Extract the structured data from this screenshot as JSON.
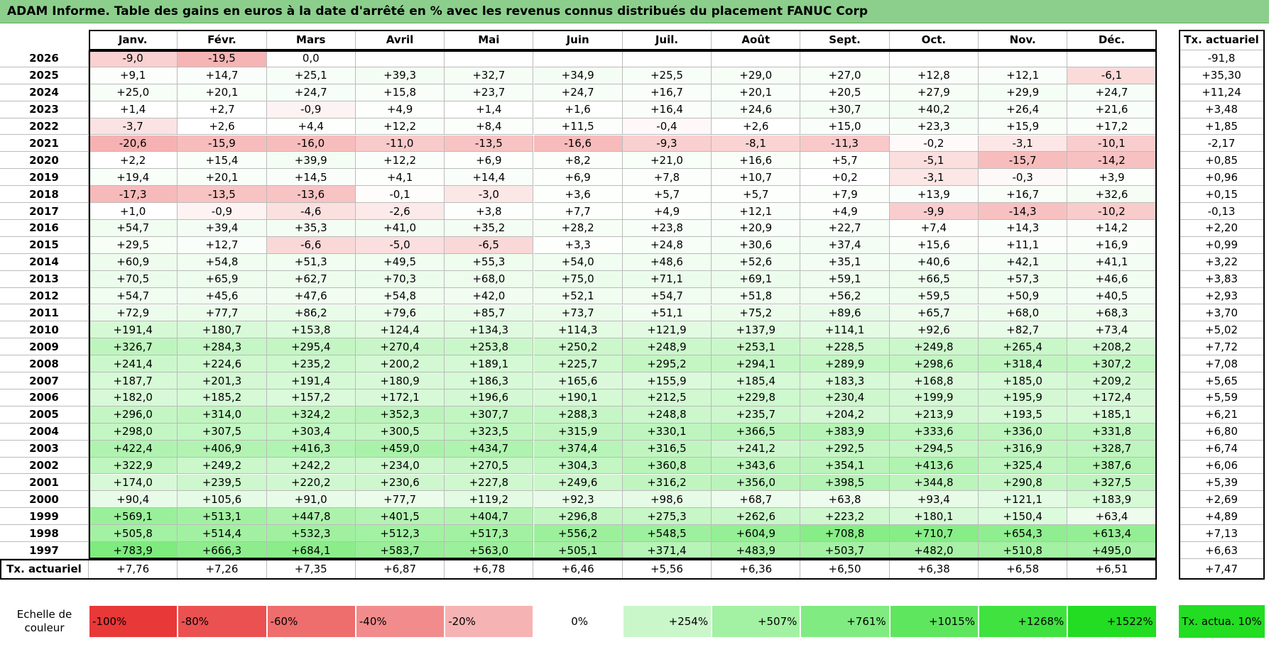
{
  "title": "ADAM Informe. Table des gains en euros à la date d'arrêté en % avec les revenus connus distribués du placement FANUC Corp",
  "table": {
    "columns": [
      "Janv.",
      "Févr.",
      "Mars",
      "Avril",
      "Mai",
      "Juin",
      "Juil.",
      "Août",
      "Sept.",
      "Oct.",
      "Nov.",
      "Déc."
    ],
    "summary_header": "Tx. actuariel",
    "rows": [
      {
        "year": "2026",
        "values": [
          "-9,0",
          "-19,5",
          "0,0"
        ],
        "summary": "-91,8"
      },
      {
        "year": "2025",
        "values": [
          "+9,1",
          "+14,7",
          "+25,1",
          "+39,3",
          "+32,7",
          "+34,9",
          "+25,5",
          "+29,0",
          "+27,0",
          "+12,8",
          "+12,1",
          "-6,1"
        ],
        "summary": "+35,30"
      },
      {
        "year": "2024",
        "values": [
          "+25,0",
          "+20,1",
          "+24,7",
          "+15,8",
          "+23,7",
          "+24,7",
          "+16,7",
          "+20,1",
          "+20,5",
          "+27,9",
          "+29,9",
          "+24,7"
        ],
        "summary": "+11,24"
      },
      {
        "year": "2023",
        "values": [
          "+1,4",
          "+2,7",
          "-0,9",
          "+4,9",
          "+1,4",
          "+1,6",
          "+16,4",
          "+24,6",
          "+30,7",
          "+40,2",
          "+26,4",
          "+21,6"
        ],
        "summary": "+3,48"
      },
      {
        "year": "2022",
        "values": [
          "-3,7",
          "+2,6",
          "+4,4",
          "+12,2",
          "+8,4",
          "+11,5",
          "-0,4",
          "+2,6",
          "+15,0",
          "+23,3",
          "+15,9",
          "+17,2"
        ],
        "summary": "+1,85"
      },
      {
        "year": "2021",
        "values": [
          "-20,6",
          "-15,9",
          "-16,0",
          "-11,0",
          "-13,5",
          "-16,6",
          "-9,3",
          "-8,1",
          "-11,3",
          "-0,2",
          "-3,1",
          "-10,1"
        ],
        "summary": "-2,17"
      },
      {
        "year": "2020",
        "values": [
          "+2,2",
          "+15,4",
          "+39,9",
          "+12,2",
          "+6,9",
          "+8,2",
          "+21,0",
          "+16,6",
          "+5,7",
          "-5,1",
          "-15,7",
          "-14,2"
        ],
        "summary": "+0,85"
      },
      {
        "year": "2019",
        "values": [
          "+19,4",
          "+20,1",
          "+14,5",
          "+4,1",
          "+14,4",
          "+6,9",
          "+7,8",
          "+10,7",
          "+0,2",
          "-3,1",
          "-0,3",
          "+3,9"
        ],
        "summary": "+0,96"
      },
      {
        "year": "2018",
        "values": [
          "-17,3",
          "-13,5",
          "-13,6",
          "-0,1",
          "-3,0",
          "+3,6",
          "+5,7",
          "+5,7",
          "+7,9",
          "+13,9",
          "+16,7",
          "+32,6"
        ],
        "summary": "+0,15"
      },
      {
        "year": "2017",
        "values": [
          "+1,0",
          "-0,9",
          "-4,6",
          "-2,6",
          "+3,8",
          "+7,7",
          "+4,9",
          "+12,1",
          "+4,9",
          "-9,9",
          "-14,3",
          "-10,2"
        ],
        "summary": "-0,13"
      },
      {
        "year": "2016",
        "values": [
          "+54,7",
          "+39,4",
          "+35,3",
          "+41,0",
          "+35,2",
          "+28,2",
          "+23,8",
          "+20,9",
          "+22,7",
          "+7,4",
          "+14,3",
          "+14,2"
        ],
        "summary": "+2,20"
      },
      {
        "year": "2015",
        "values": [
          "+29,5",
          "+12,7",
          "-6,6",
          "-5,0",
          "-6,5",
          "+3,3",
          "+24,8",
          "+30,6",
          "+37,4",
          "+15,6",
          "+11,1",
          "+16,9"
        ],
        "summary": "+0,99"
      },
      {
        "year": "2014",
        "values": [
          "+60,9",
          "+54,8",
          "+51,3",
          "+49,5",
          "+55,3",
          "+54,0",
          "+48,6",
          "+52,6",
          "+35,1",
          "+40,6",
          "+42,1",
          "+41,1"
        ],
        "summary": "+3,22"
      },
      {
        "year": "2013",
        "values": [
          "+70,5",
          "+65,9",
          "+62,7",
          "+70,3",
          "+68,0",
          "+75,0",
          "+71,1",
          "+69,1",
          "+59,1",
          "+66,5",
          "+57,3",
          "+46,6"
        ],
        "summary": "+3,83"
      },
      {
        "year": "2012",
        "values": [
          "+54,7",
          "+45,6",
          "+47,6",
          "+54,8",
          "+42,0",
          "+52,1",
          "+54,7",
          "+51,8",
          "+56,2",
          "+59,5",
          "+50,9",
          "+40,5"
        ],
        "summary": "+2,93"
      },
      {
        "year": "2011",
        "values": [
          "+72,9",
          "+77,7",
          "+86,2",
          "+79,6",
          "+85,7",
          "+73,7",
          "+51,1",
          "+75,2",
          "+89,6",
          "+65,7",
          "+68,0",
          "+68,3"
        ],
        "summary": "+3,70"
      },
      {
        "year": "2010",
        "values": [
          "+191,4",
          "+180,7",
          "+153,8",
          "+124,4",
          "+134,3",
          "+114,3",
          "+121,9",
          "+137,9",
          "+114,1",
          "+92,6",
          "+82,7",
          "+73,4"
        ],
        "summary": "+5,02"
      },
      {
        "year": "2009",
        "values": [
          "+326,7",
          "+284,3",
          "+295,4",
          "+270,4",
          "+253,8",
          "+250,2",
          "+248,9",
          "+253,1",
          "+228,5",
          "+249,8",
          "+265,4",
          "+208,2"
        ],
        "summary": "+7,72"
      },
      {
        "year": "2008",
        "values": [
          "+241,4",
          "+224,6",
          "+235,2",
          "+200,2",
          "+189,1",
          "+225,7",
          "+295,2",
          "+294,1",
          "+289,9",
          "+298,6",
          "+318,4",
          "+307,2"
        ],
        "summary": "+7,08"
      },
      {
        "year": "2007",
        "values": [
          "+187,7",
          "+201,3",
          "+191,4",
          "+180,9",
          "+186,3",
          "+165,6",
          "+155,9",
          "+185,4",
          "+183,3",
          "+168,8",
          "+185,0",
          "+209,2"
        ],
        "summary": "+5,65"
      },
      {
        "year": "2006",
        "values": [
          "+182,0",
          "+185,2",
          "+157,2",
          "+172,1",
          "+196,6",
          "+190,1",
          "+212,5",
          "+229,8",
          "+230,4",
          "+199,9",
          "+195,9",
          "+172,4"
        ],
        "summary": "+5,59"
      },
      {
        "year": "2005",
        "values": [
          "+296,0",
          "+314,0",
          "+324,2",
          "+352,3",
          "+307,7",
          "+288,3",
          "+248,8",
          "+235,7",
          "+204,2",
          "+213,9",
          "+193,5",
          "+185,1"
        ],
        "summary": "+6,21"
      },
      {
        "year": "2004",
        "values": [
          "+298,0",
          "+307,5",
          "+303,4",
          "+300,5",
          "+323,5",
          "+315,9",
          "+330,1",
          "+366,5",
          "+383,9",
          "+333,6",
          "+336,0",
          "+331,8"
        ],
        "summary": "+6,80"
      },
      {
        "year": "2003",
        "values": [
          "+422,4",
          "+406,9",
          "+416,3",
          "+459,0",
          "+434,7",
          "+374,4",
          "+316,5",
          "+241,2",
          "+292,5",
          "+294,5",
          "+316,9",
          "+328,7"
        ],
        "summary": "+6,74"
      },
      {
        "year": "2002",
        "values": [
          "+322,9",
          "+249,2",
          "+242,2",
          "+234,0",
          "+270,5",
          "+304,3",
          "+360,8",
          "+343,6",
          "+354,1",
          "+413,6",
          "+325,4",
          "+387,6"
        ],
        "summary": "+6,06"
      },
      {
        "year": "2001",
        "values": [
          "+174,0",
          "+239,5",
          "+220,2",
          "+230,6",
          "+227,8",
          "+249,6",
          "+316,2",
          "+356,0",
          "+398,5",
          "+344,8",
          "+290,8",
          "+327,5"
        ],
        "summary": "+5,39"
      },
      {
        "year": "2000",
        "values": [
          "+90,4",
          "+105,6",
          "+91,0",
          "+77,7",
          "+119,2",
          "+92,3",
          "+98,6",
          "+68,7",
          "+63,8",
          "+93,4",
          "+121,1",
          "+183,9"
        ],
        "summary": "+2,69"
      },
      {
        "year": "1999",
        "values": [
          "+569,1",
          "+513,1",
          "+447,8",
          "+401,5",
          "+404,7",
          "+296,8",
          "+275,3",
          "+262,6",
          "+223,2",
          "+180,1",
          "+150,4",
          "+63,4"
        ],
        "summary": "+4,89"
      },
      {
        "year": "1998",
        "values": [
          "+505,8",
          "+514,4",
          "+532,3",
          "+512,3",
          "+517,3",
          "+556,2",
          "+548,5",
          "+604,9",
          "+708,8",
          "+710,7",
          "+654,3",
          "+613,4"
        ],
        "summary": "+7,13"
      },
      {
        "year": "1997",
        "values": [
          "+783,9",
          "+666,3",
          "+684,1",
          "+583,7",
          "+563,0",
          "+505,1",
          "+371,4",
          "+483,9",
          "+503,7",
          "+482,0",
          "+510,8",
          "+495,0"
        ],
        "summary": "+6,63"
      }
    ],
    "footer": {
      "label": "Tx. actuariel",
      "values": [
        "+7,76",
        "+7,26",
        "+7,35",
        "+6,87",
        "+6,78",
        "+6,46",
        "+5,56",
        "+6,36",
        "+6,50",
        "+6,38",
        "+6,58",
        "+6,51"
      ],
      "summary": "+7,47"
    }
  },
  "legend": {
    "label": "Echelle de couleur",
    "steps": [
      "-100%",
      "-80%",
      "-60%",
      "-40%",
      "-20%",
      "0%",
      "+254%",
      "+507%",
      "+761%",
      "+1015%",
      "+1268%",
      "+1522%"
    ],
    "summary": "Tx. actua. 10%"
  }
}
